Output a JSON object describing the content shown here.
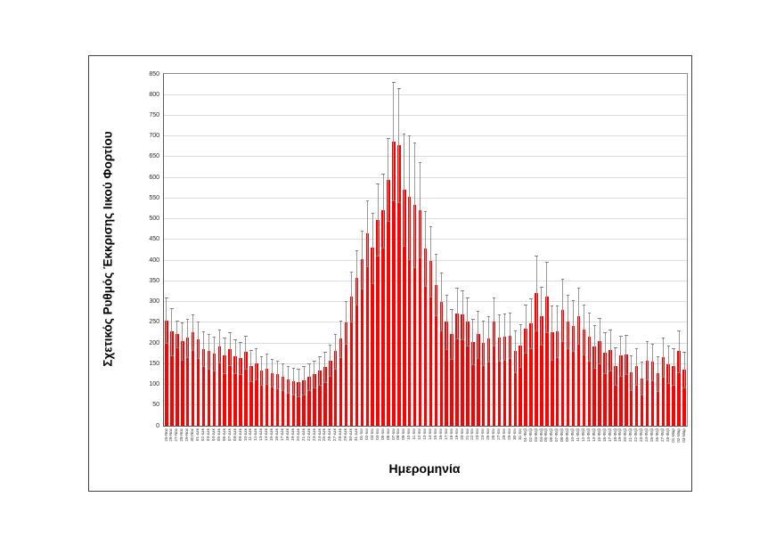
{
  "chart_data": {
    "type": "bar",
    "title": "",
    "xlabel": "Ημερομηνία",
    "ylabel": "Σχετικός Ρυθμός Έκκρισης Ιικού Φορτίου",
    "ylim": [
      0,
      850
    ],
    "ytick_step": 50,
    "grid": "horizontal",
    "legend": "none",
    "bar_color": "#fe0000",
    "error_bar_color": "#999999",
    "error_cap_color": "#7f7f7f",
    "grid_color": "#dcdcdc",
    "categories": [
      "25-Νοε",
      "26-Νοε",
      "27-Νοε",
      "28-Νοε",
      "29-Νοε",
      "30-Νοε",
      "01-Δεκ",
      "02-Δεκ",
      "03-Δεκ",
      "04-Δεκ",
      "05-Δεκ",
      "06-Δεκ",
      "07-Δεκ",
      "08-Δεκ",
      "09-Δεκ",
      "10-Δεκ",
      "11-Δεκ",
      "12-Δεκ",
      "13-Δεκ",
      "14-Δεκ",
      "15-Δεκ",
      "16-Δεκ",
      "17-Δεκ",
      "18-Δεκ",
      "19-Δεκ",
      "20-Δεκ",
      "21-Δεκ",
      "22-Δεκ",
      "23-Δεκ",
      "24-Δεκ",
      "25-Δεκ",
      "26-Δεκ",
      "27-Δεκ",
      "28-Δεκ",
      "29-Δεκ",
      "30-Δεκ",
      "31-Δεκ",
      "01-Ιαν",
      "02-Ιαν",
      "03-Ιαν",
      "04-Ιαν",
      "05-Ιαν",
      "06-Ιαν",
      "07-Ιαν",
      "08-Ιαν",
      "09-Ιαν",
      "10-Ιαν",
      "11-Ιαν",
      "12-Ιαν",
      "13-Ιαν",
      "14-Ιαν",
      "15-Ιαν",
      "16-Ιαν",
      "17-Ιαν",
      "18-Ιαν",
      "19-Ιαν",
      "20-Ιαν",
      "21-Ιαν",
      "22-Ιαν",
      "23-Ιαν",
      "24-Ιαν",
      "25-Ιαν",
      "26-Ιαν",
      "27-Ιαν",
      "28-Ιαν",
      "29-Ιαν",
      "30-Ιαν",
      "31-Ιαν",
      "01-Φεβ",
      "02-Φεβ",
      "03-Φεβ",
      "04-Φεβ",
      "05-Φεβ",
      "06-Φεβ",
      "07-Φεβ",
      "08-Φεβ",
      "09-Φεβ",
      "10-Φεβ",
      "11-Φεβ",
      "12-Φεβ",
      "13-Φεβ",
      "14-Φεβ",
      "15-Φεβ",
      "16-Φεβ",
      "17-Φεβ",
      "18-Φεβ",
      "19-Φεβ",
      "20-Φεβ",
      "21-Φεβ",
      "22-Φεβ",
      "23-Φεβ",
      "24-Φεβ",
      "25-Φεβ",
      "26-Φεβ",
      "27-Φεβ",
      "28-Φεβ",
      "01-Μαρ",
      "02-Μαρ",
      "03-Μαρ"
    ],
    "values": [
      255,
      228,
      222,
      205,
      212,
      225,
      208,
      186,
      180,
      174,
      192,
      170,
      186,
      168,
      163,
      178,
      145,
      150,
      133,
      138,
      128,
      124,
      118,
      112,
      108,
      105,
      110,
      118,
      125,
      133,
      142,
      158,
      180,
      210,
      250,
      312,
      358,
      402,
      465,
      430,
      498,
      520,
      594,
      687,
      678,
      570,
      552,
      534,
      521,
      428,
      398,
      341,
      300,
      251,
      221,
      272,
      268,
      251,
      203,
      221,
      200,
      210,
      251,
      213,
      215,
      218,
      180,
      193,
      235,
      248,
      320,
      265,
      312,
      225,
      228,
      280,
      252,
      242,
      265,
      232,
      215,
      192,
      205,
      176,
      183,
      144,
      169,
      172,
      129,
      144,
      115,
      158,
      154,
      126,
      165,
      148,
      144,
      180,
      135
    ],
    "errors": [
      55,
      57,
      33,
      45,
      46,
      43,
      44,
      42,
      42,
      41,
      40,
      42,
      39,
      40,
      39,
      40,
      37,
      38,
      35,
      37,
      34,
      34,
      32,
      33,
      32,
      33,
      34,
      32,
      33,
      35,
      36,
      38,
      42,
      45,
      52,
      60,
      65,
      70,
      80,
      85,
      88,
      90,
      100,
      143,
      138,
      135,
      150,
      150,
      115,
      90,
      85,
      75,
      70,
      65,
      60,
      62,
      60,
      58,
      55,
      57,
      54,
      55,
      58,
      55,
      56,
      55,
      50,
      52,
      58,
      60,
      90,
      70,
      85,
      65,
      62,
      75,
      65,
      62,
      68,
      60,
      58,
      52,
      55,
      50,
      50,
      45,
      48,
      48,
      42,
      44,
      40,
      46,
      45,
      42,
      47,
      45,
      44,
      50,
      43
    ]
  }
}
